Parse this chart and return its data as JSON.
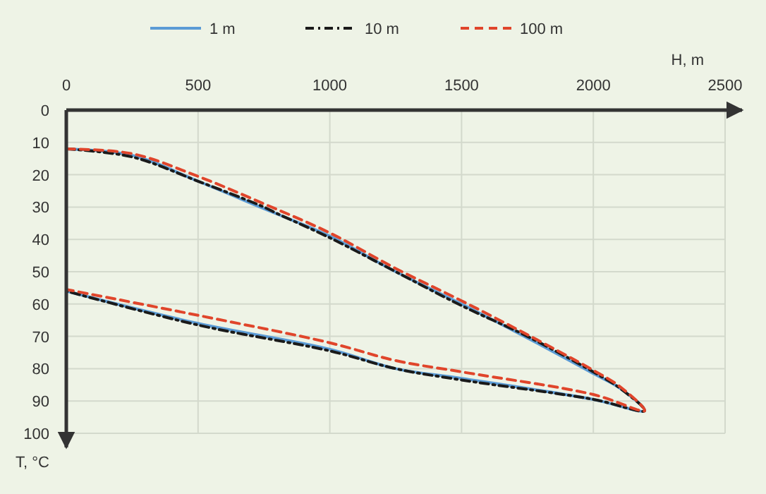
{
  "chart_data": {
    "type": "line",
    "xlabel": "H, m",
    "ylabel": "T, °C",
    "xlim": [
      0,
      2500
    ],
    "xticks": [
      0,
      500,
      1000,
      1500,
      2000,
      2500
    ],
    "ylim": [
      100,
      0
    ],
    "yticks": [
      0,
      10,
      20,
      30,
      40,
      50,
      60,
      70,
      80,
      90,
      100
    ],
    "grid": true,
    "legend": "top",
    "series": [
      {
        "name": "1 m",
        "color": "#5b9bd5",
        "line_style": "solid",
        "x": [
          0,
          250,
          500,
          750,
          1000,
          1250,
          1500,
          1750,
          2000,
          2100,
          2195,
          2000,
          1500,
          1250,
          1000,
          500,
          0
        ],
        "values": [
          12,
          14,
          22,
          30.5,
          39,
          50,
          60,
          70.5,
          81.5,
          86,
          93,
          89.5,
          83,
          80,
          74,
          66,
          56
        ]
      },
      {
        "name": "10 m",
        "color": "#1a1a1a",
        "line_style": "dotted",
        "x": [
          0,
          250,
          500,
          750,
          800,
          1000,
          1250,
          1500,
          1750,
          2000,
          2100,
          2195,
          2000,
          1500,
          1250,
          1000,
          500,
          0
        ],
        "values": [
          12,
          14.5,
          22,
          30,
          32,
          39.5,
          50,
          60.5,
          70,
          81,
          86,
          93,
          89.5,
          83.5,
          80,
          74.5,
          66.5,
          56
        ]
      },
      {
        "name": "100 m",
        "color": "#e0452b",
        "line_style": "dashed",
        "x": [
          0,
          250,
          500,
          750,
          1000,
          1250,
          1500,
          1750,
          2000,
          2100,
          2195,
          2000,
          1500,
          1250,
          1000,
          500,
          0
        ],
        "values": [
          12,
          13.5,
          20.5,
          29,
          38,
          49,
          59,
          69.5,
          80.5,
          85.5,
          93,
          88,
          81,
          77.5,
          72,
          63.5,
          55.5
        ]
      }
    ]
  }
}
